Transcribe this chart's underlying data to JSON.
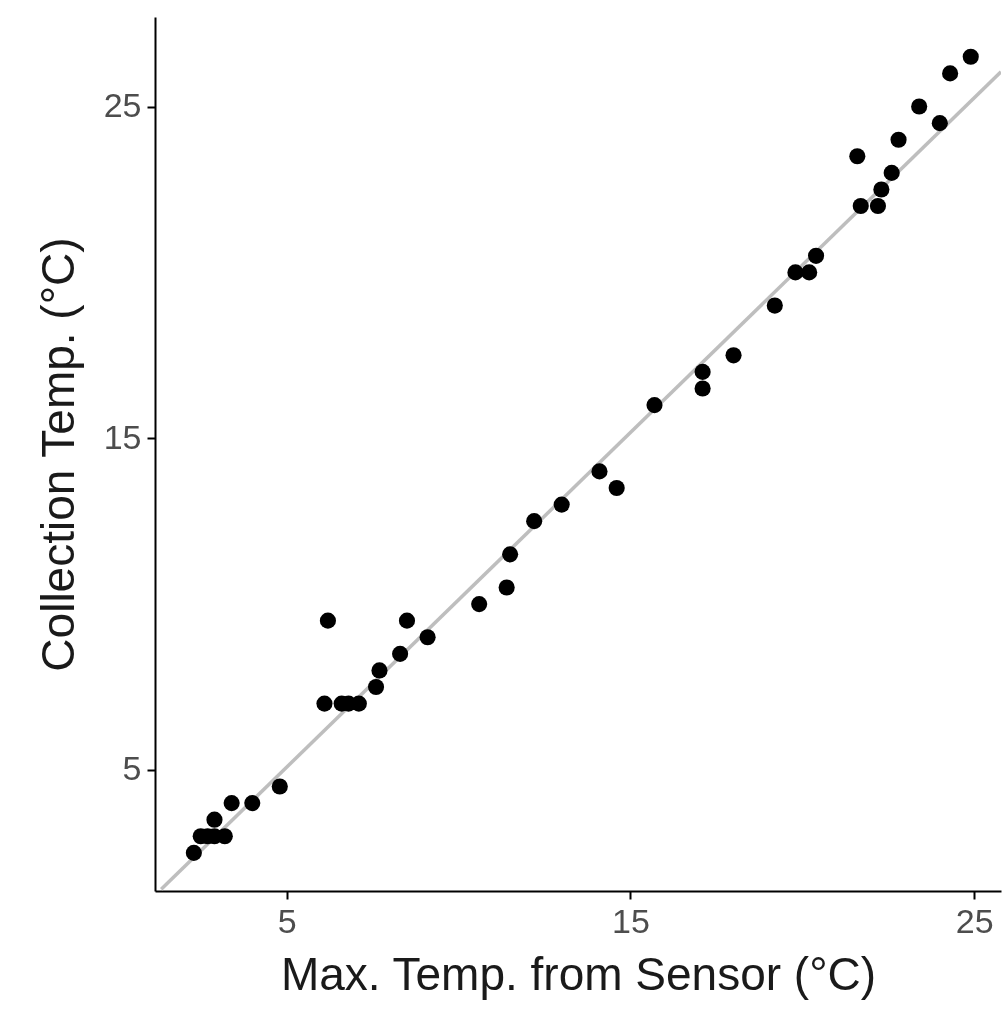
{
  "chart_data": {
    "type": "scatter",
    "xlabel": "Max. Temp. from Sensor (°C)",
    "ylabel": "Collection Temp. (°C)",
    "xlim": [
      1.17,
      25.78
    ],
    "ylim": [
      1.35,
      27.7
    ],
    "xticks": [
      5,
      15,
      25
    ],
    "yticks": [
      5,
      15,
      25
    ],
    "grid": false,
    "marker": "circle",
    "series": [
      {
        "type": "line",
        "color": "#bebebe",
        "line_style": "solid",
        "marker": "none",
        "x": [
          1.35,
          25.78
        ],
        "values": [
          1.4,
          26.05
        ]
      },
      {
        "color": "#000000",
        "x": [
          2.3,
          2.5,
          2.7,
          2.9,
          3.2,
          2.9,
          3.4,
          4.0,
          4.8,
          6.1,
          6.6,
          6.8,
          7.1,
          6.2,
          7.6,
          7.7,
          8.3,
          8.5,
          9.1,
          10.6,
          11.4,
          11.5,
          12.2,
          13.0,
          14.1,
          14.6,
          15.7,
          17.1,
          17.1,
          18.0,
          19.2,
          19.8,
          20.2,
          20.4,
          21.6,
          21.7,
          22.2,
          22.3,
          22.6,
          22.8,
          23.4,
          24.0,
          24.3,
          24.9
        ],
        "values": [
          2.5,
          3.0,
          3.0,
          3.0,
          3.0,
          3.5,
          4.0,
          4.0,
          4.5,
          7.0,
          7.0,
          7.0,
          7.0,
          9.5,
          7.5,
          8.0,
          8.5,
          9.5,
          9.0,
          10.0,
          10.5,
          11.5,
          12.5,
          13.0,
          14.0,
          13.5,
          16.0,
          17.0,
          16.5,
          17.5,
          19.0,
          20.0,
          20.0,
          20.5,
          23.5,
          22.0,
          22.0,
          22.5,
          23.0,
          24.0,
          25.0,
          24.5,
          26.0,
          26.5
        ]
      }
    ]
  }
}
